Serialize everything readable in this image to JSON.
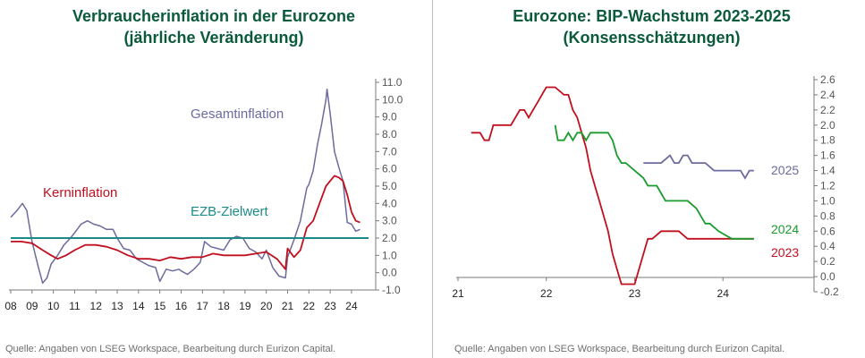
{
  "charts": [
    {
      "title_line1": "Verbraucherinflation in der Eurozone",
      "title_line2": "(jährliche Veränderung)",
      "source": "Quelle: Angaben von LSEG Workspace, Bearbeitung durch Eurizon Capital."
    },
    {
      "title_line1": "Eurozone: BIP-Wachstum 2023-2025",
      "title_line2": "(Konsensschätzungen)",
      "source": "Quelle: Angaben von LSEG Workspace, Bearbeitung durch Eurizon Capital."
    }
  ],
  "chart_data": [
    {
      "type": "line",
      "title": "Verbraucherinflation in der Eurozone (jährliche Veränderung)",
      "x_ticks": [
        "08",
        "09",
        "10",
        "11",
        "12",
        "13",
        "14",
        "15",
        "16",
        "17",
        "18",
        "19",
        "20",
        "21",
        "22",
        "23",
        "24"
      ],
      "xlim": [
        2008,
        2024.8
      ],
      "y_ticks": [
        "11.0",
        "10.0",
        "9.0",
        "8.0",
        "7.0",
        "6.0",
        "5.0",
        "4.0",
        "3.0",
        "2.0",
        "1.0",
        "0.0",
        "-1.0"
      ],
      "ylim": [
        -1,
        11
      ],
      "y_axis_side": "right",
      "series": [
        {
          "name": "Gesamtinflation",
          "color": "#6c6a9e",
          "x": [
            2008.0,
            2008.3,
            2008.55,
            2008.75,
            2009.0,
            2009.3,
            2009.5,
            2009.7,
            2009.9,
            2010.2,
            2010.5,
            2010.8,
            2011.0,
            2011.3,
            2011.6,
            2011.9,
            2012.2,
            2012.5,
            2012.8,
            2013.0,
            2013.3,
            2013.6,
            2013.9,
            2014.2,
            2014.5,
            2014.8,
            2015.0,
            2015.3,
            2015.6,
            2015.9,
            2016.0,
            2016.3,
            2016.6,
            2016.9,
            2017.1,
            2017.4,
            2017.7,
            2018.0,
            2018.3,
            2018.6,
            2018.9,
            2019.2,
            2019.5,
            2019.8,
            2020.0,
            2020.3,
            2020.6,
            2020.9,
            2021.0,
            2021.3,
            2021.6,
            2021.9,
            2022.0,
            2022.2,
            2022.4,
            2022.6,
            2022.8,
            2022.85,
            2023.0,
            2023.2,
            2023.4,
            2023.6,
            2023.8,
            2024.0,
            2024.2,
            2024.4
          ],
          "y": [
            3.2,
            3.6,
            4.0,
            3.6,
            1.8,
            0.3,
            -0.6,
            -0.3,
            0.5,
            1.0,
            1.6,
            2.0,
            2.3,
            2.8,
            3.0,
            2.8,
            2.7,
            2.5,
            2.5,
            2.0,
            1.4,
            1.3,
            0.8,
            0.6,
            0.4,
            0.3,
            -0.5,
            0.2,
            0.1,
            0.2,
            0.1,
            -0.1,
            0.2,
            0.6,
            1.8,
            1.5,
            1.4,
            1.3,
            1.9,
            2.1,
            2.0,
            1.4,
            1.2,
            0.8,
            1.3,
            0.3,
            -0.2,
            -0.3,
            0.9,
            1.9,
            3.0,
            4.9,
            5.1,
            5.9,
            7.4,
            8.6,
            10.0,
            10.6,
            9.2,
            7.0,
            6.1,
            5.3,
            2.9,
            2.8,
            2.4,
            2.5
          ]
        },
        {
          "name": "Kerninflation",
          "color": "#c0101f",
          "x": [
            2008.0,
            2008.5,
            2009.0,
            2009.5,
            2009.9,
            2010.2,
            2010.6,
            2011.0,
            2011.5,
            2012.0,
            2012.5,
            2013.0,
            2013.5,
            2014.0,
            2014.5,
            2015.0,
            2015.5,
            2016.0,
            2016.5,
            2017.0,
            2017.5,
            2018.0,
            2018.5,
            2019.0,
            2019.5,
            2020.0,
            2020.5,
            2020.9,
            2021.0,
            2021.3,
            2021.6,
            2021.9,
            2022.2,
            2022.5,
            2022.8,
            2023.0,
            2023.2,
            2023.4,
            2023.6,
            2023.8,
            2024.0,
            2024.2,
            2024.4
          ],
          "y": [
            1.8,
            1.8,
            1.7,
            1.3,
            1.0,
            0.8,
            1.0,
            1.3,
            1.6,
            1.6,
            1.5,
            1.3,
            1.0,
            0.8,
            0.8,
            0.7,
            0.9,
            0.8,
            0.9,
            0.9,
            1.1,
            1.0,
            1.0,
            1.0,
            1.1,
            1.2,
            0.8,
            0.2,
            1.4,
            0.9,
            1.3,
            2.6,
            3.0,
            4.0,
            5.0,
            5.3,
            5.6,
            5.5,
            5.3,
            4.5,
            3.5,
            3.0,
            2.9
          ]
        },
        {
          "name": "EZB-Zielwert",
          "color": "#1d8a8a",
          "x": [
            2008.0,
            2024.8
          ],
          "y": [
            2.0,
            2.0
          ]
        }
      ]
    },
    {
      "type": "line",
      "title": "Eurozone: BIP-Wachstum 2023-2025 (Konsensschätzungen)",
      "x_ticks": [
        "21",
        "22",
        "23",
        "24"
      ],
      "xlim": [
        2021.0,
        2024.95
      ],
      "y_ticks": [
        "2.6",
        "2.4",
        "2.2",
        "2.0",
        "1.8",
        "1.6",
        "1.4",
        "1.2",
        "1.0",
        "0.8",
        "0.6",
        "0.4",
        "0.2",
        "0.0",
        "-0.2"
      ],
      "ylim": [
        -0.2,
        2.6
      ],
      "y_axis_side": "right",
      "series": [
        {
          "name": "2023",
          "color": "#c0101f",
          "x": [
            2021.15,
            2021.25,
            2021.3,
            2021.35,
            2021.4,
            2021.6,
            2021.65,
            2021.7,
            2021.75,
            2021.8,
            2021.9,
            2021.95,
            2022.0,
            2022.1,
            2022.2,
            2022.25,
            2022.3,
            2022.35,
            2022.4,
            2022.45,
            2022.5,
            2022.55,
            2022.6,
            2022.65,
            2022.7,
            2022.75,
            2022.8,
            2022.85,
            2023.0,
            2023.05,
            2023.1,
            2023.15,
            2023.2,
            2023.3,
            2023.4,
            2023.5,
            2023.6,
            2023.7,
            2023.8,
            2024.0,
            2024.1,
            2024.2,
            2024.35
          ],
          "y": [
            1.9,
            1.9,
            1.8,
            1.8,
            2.0,
            2.0,
            2.1,
            2.2,
            2.2,
            2.1,
            2.3,
            2.4,
            2.5,
            2.5,
            2.4,
            2.4,
            2.2,
            2.1,
            1.9,
            1.7,
            1.4,
            1.2,
            1.0,
            0.8,
            0.6,
            0.3,
            0.1,
            -0.1,
            -0.1,
            0.1,
            0.3,
            0.5,
            0.5,
            0.6,
            0.6,
            0.6,
            0.5,
            0.5,
            0.5,
            0.5,
            0.5,
            0.5,
            0.5
          ]
        },
        {
          "name": "2024",
          "color": "#1a9b2e",
          "x": [
            2022.1,
            2022.13,
            2022.2,
            2022.25,
            2022.3,
            2022.35,
            2022.4,
            2022.45,
            2022.5,
            2022.55,
            2022.6,
            2022.7,
            2022.75,
            2022.8,
            2022.85,
            2022.9,
            2023.0,
            2023.1,
            2023.15,
            2023.25,
            2023.3,
            2023.35,
            2023.6,
            2023.7,
            2023.75,
            2023.8,
            2023.85,
            2023.95,
            2024.1,
            2024.35
          ],
          "y": [
            2.0,
            1.8,
            1.8,
            1.9,
            1.8,
            1.9,
            1.9,
            1.8,
            1.9,
            1.9,
            1.9,
            1.9,
            1.8,
            1.6,
            1.5,
            1.5,
            1.4,
            1.3,
            1.2,
            1.2,
            1.1,
            1.0,
            1.0,
            0.9,
            0.8,
            0.7,
            0.7,
            0.6,
            0.5,
            0.5
          ]
        },
        {
          "name": "2025",
          "color": "#6c6a9e",
          "x": [
            2023.1,
            2023.2,
            2023.3,
            2023.4,
            2023.45,
            2023.5,
            2023.55,
            2023.6,
            2023.65,
            2023.7,
            2023.8,
            2023.9,
            2024.0,
            2024.1,
            2024.2,
            2024.25,
            2024.3,
            2024.35
          ],
          "y": [
            1.5,
            1.5,
            1.5,
            1.6,
            1.5,
            1.5,
            1.6,
            1.6,
            1.5,
            1.5,
            1.5,
            1.4,
            1.4,
            1.4,
            1.4,
            1.3,
            1.4,
            1.4
          ]
        }
      ]
    }
  ]
}
